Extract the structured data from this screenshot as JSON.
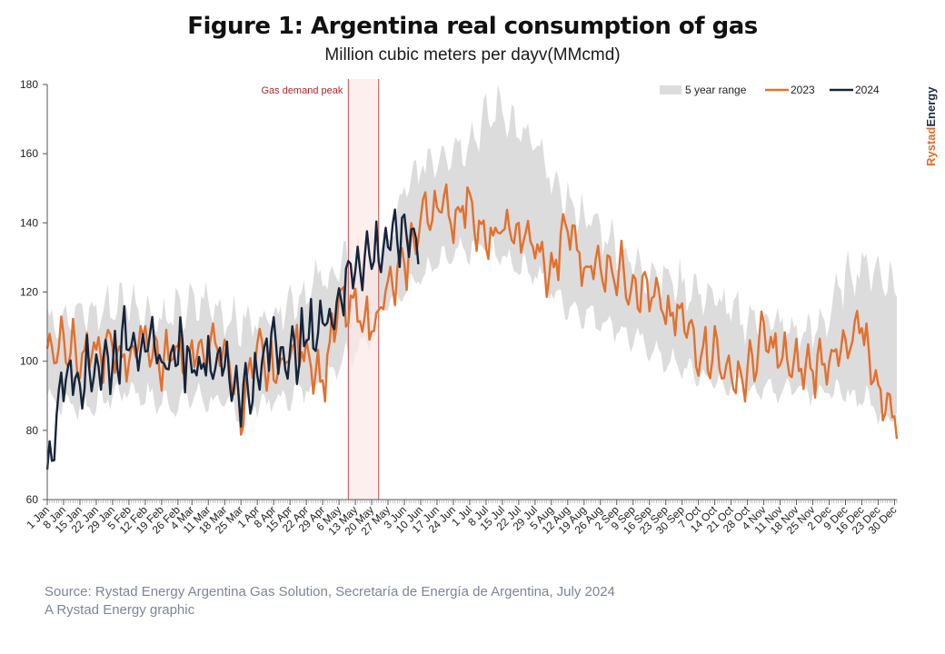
{
  "header": {
    "title": "Figure 1: Argentina real consumption of gas",
    "subtitle": "Million cubic meters per dayv(MMcmd)"
  },
  "brand": {
    "name": "RystadEnergy",
    "part1": "Rystad",
    "part2": "Energy",
    "color1": "#e36b26",
    "color2": "#1e2d4a"
  },
  "footer": {
    "source": "Source: Rystad Energy Argentina Gas Solution, Secretaría de Energía de Argentina, July 2024",
    "credit": "A Rystad Energy graphic"
  },
  "colors": {
    "range": "#dcdcdc",
    "s2023": "#e3702d",
    "s2024": "#16243b",
    "peak_fill": "#fbe9e7",
    "peak_line": "#c0504d",
    "axis": "#555555"
  },
  "chart_data": {
    "type": "line",
    "x_label_dates": [
      "1 Jan",
      "8 Jan",
      "15 Jan",
      "22 Jan",
      "29 Jan",
      "5 Feb",
      "12 Feb",
      "19 Feb",
      "26 Feb",
      "4 Mar",
      "11 Mar",
      "18 Mar",
      "25 Mar",
      "1 Apr",
      "8 Apr",
      "15 Apr",
      "22 Apr",
      "29 Apr",
      "6 May",
      "13 May",
      "20 May",
      "27 May",
      "3 Jun",
      "10 Jun",
      "17 Jun",
      "24 Jun",
      "1 Jul",
      "8 Jul",
      "15 Jul",
      "22 Jul",
      "29 Jul",
      "5 Aug",
      "12 Aug",
      "19 Aug",
      "26 Aug",
      "2 Sep",
      "9 Sep",
      "16 Sep",
      "23 Sep",
      "30 Sep",
      "7 Oct",
      "14 Oct",
      "21 Oct",
      "28 Oct",
      "4 Nov",
      "11 Nov",
      "18 Nov",
      "25 Nov",
      "2 Dec",
      "9 Dec",
      "16 Dec",
      "23 Dec",
      "30 Dec"
    ],
    "ylim": [
      60,
      180
    ],
    "yticks": [
      60,
      80,
      100,
      120,
      140,
      160,
      180
    ],
    "x_range": [
      "1 Jan",
      "31 Dec"
    ],
    "annotation": {
      "label": "Gas demand peak",
      "start": "10 May",
      "end": "23 May"
    },
    "legend": {
      "position": "top-right",
      "items": [
        "5 year range",
        "2023",
        "2024"
      ]
    },
    "range_band": {
      "name": "5 year range",
      "x": [
        "1 Jan",
        "8 Jan",
        "15 Jan",
        "22 Jan",
        "29 Jan",
        "5 Feb",
        "12 Feb",
        "19 Feb",
        "26 Feb",
        "4 Mar",
        "11 Mar",
        "18 Mar",
        "25 Mar",
        "1 Apr",
        "8 Apr",
        "15 Apr",
        "22 Apr",
        "29 Apr",
        "6 May",
        "13 May",
        "20 May",
        "27 May",
        "3 Jun",
        "10 Jun",
        "17 Jun",
        "24 Jun",
        "1 Jul",
        "8 Jul",
        "15 Jul",
        "22 Jul",
        "29 Jul",
        "5 Aug",
        "12 Aug",
        "19 Aug",
        "26 Aug",
        "2 Sep",
        "9 Sep",
        "16 Sep",
        "23 Sep",
        "30 Sep",
        "7 Oct",
        "14 Oct",
        "21 Oct",
        "28 Oct",
        "4 Nov",
        "11 Nov",
        "18 Nov",
        "25 Nov",
        "2 Dec",
        "9 Dec",
        "16 Dec",
        "23 Dec",
        "30 Dec"
      ],
      "low": [
        90,
        88,
        87,
        88,
        90,
        92,
        90,
        88,
        88,
        90,
        89,
        87,
        86,
        88,
        88,
        90,
        92,
        96,
        100,
        104,
        108,
        118,
        122,
        124,
        128,
        130,
        132,
        134,
        130,
        128,
        126,
        120,
        116,
        114,
        112,
        110,
        106,
        104,
        100,
        98,
        96,
        94,
        93,
        92,
        92,
        92,
        93,
        92,
        91,
        90,
        90,
        86,
        85
      ],
      "high": [
        112,
        114,
        113,
        114,
        116,
        118,
        114,
        112,
        114,
        116,
        117,
        114,
        110,
        112,
        114,
        118,
        120,
        124,
        126,
        130,
        132,
        134,
        148,
        156,
        160,
        162,
        164,
        170,
        174,
        166,
        162,
        152,
        146,
        142,
        138,
        134,
        128,
        126,
        124,
        122,
        120,
        118,
        114,
        112,
        112,
        110,
        108,
        108,
        114,
        124,
        128,
        126,
        122
      ]
    },
    "series": [
      {
        "name": "2023",
        "x": [
          "1 Jan",
          "8 Jan",
          "15 Jan",
          "22 Jan",
          "29 Jan",
          "5 Feb",
          "12 Feb",
          "19 Feb",
          "26 Feb",
          "4 Mar",
          "11 Mar",
          "18 Mar",
          "25 Mar",
          "1 Apr",
          "8 Apr",
          "15 Apr",
          "22 Apr",
          "29 Apr",
          "6 May",
          "13 May",
          "20 May",
          "27 May",
          "3 Jun",
          "10 Jun",
          "17 Jun",
          "24 Jun",
          "1 Jul",
          "8 Jul",
          "15 Jul",
          "22 Jul",
          "29 Jul",
          "5 Aug",
          "12 Aug",
          "19 Aug",
          "26 Aug",
          "2 Sep",
          "9 Sep",
          "16 Sep",
          "23 Sep",
          "30 Sep",
          "7 Oct",
          "14 Oct",
          "21 Oct",
          "28 Oct",
          "4 Nov",
          "11 Nov",
          "18 Nov",
          "25 Nov",
          "2 Dec",
          "9 Dec",
          "16 Dec",
          "23 Dec",
          "30 Dec"
        ],
        "values": [
          102,
          108,
          100,
          102,
          103,
          101,
          108,
          99,
          104,
          101,
          103,
          104,
          86,
          102,
          96,
          103,
          104,
          94,
          116,
          114,
          111,
          120,
          127,
          141,
          146,
          142,
          147,
          133,
          138,
          137,
          133,
          124,
          140,
          127,
          128,
          127,
          123,
          120,
          113,
          112,
          104,
          103,
          95,
          96,
          107,
          101,
          98,
          98,
          102,
          102,
          110,
          92,
          84
        ]
      },
      {
        "name": "2024",
        "x": [
          "1 Jan",
          "8 Jan",
          "15 Jan",
          "22 Jan",
          "29 Jan",
          "5 Feb",
          "12 Feb",
          "19 Feb",
          "26 Feb",
          "4 Mar",
          "11 Mar",
          "18 Mar",
          "25 Mar",
          "1 Apr",
          "8 Apr",
          "15 Apr",
          "22 Apr",
          "29 Apr",
          "6 May",
          "13 May",
          "20 May",
          "27 May",
          "3 Jun"
        ],
        "values": [
          66,
          97,
          96,
          99,
          100,
          108,
          105,
          99,
          103,
          100,
          101,
          99,
          91,
          94,
          108,
          100,
          107,
          111,
          118,
          129,
          131,
          134,
          137
        ]
      }
    ]
  }
}
